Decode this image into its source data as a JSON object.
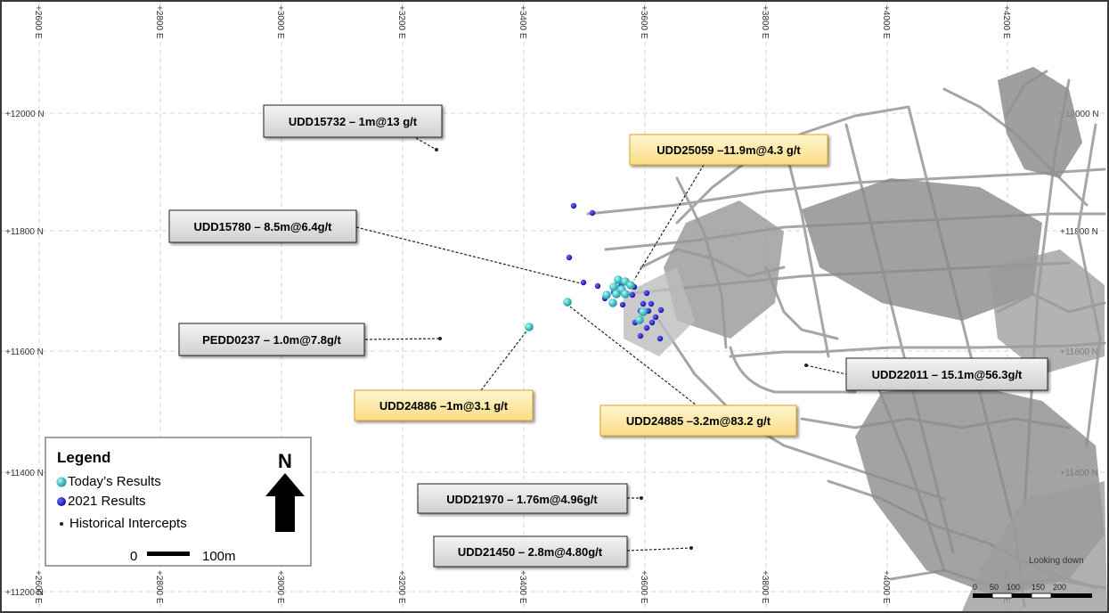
{
  "grid": {
    "easting_labels": [
      "+2600 E",
      "+2800 E",
      "+3000 E",
      "+3200 E",
      "+3400 E",
      "+3600 E",
      "+3800 E",
      "+4000 E",
      "+4200 E"
    ],
    "northing_labels": [
      "+12000 N",
      "+11800 N",
      "+11600 N",
      "+11400 N",
      "+11200 N"
    ]
  },
  "callouts": {
    "udd15732": "UDD15732 – 1m@13 g/t",
    "udd25059": "UDD25059 –11.9m@4.3 g/t",
    "udd15780": "UDD15780 – 8.5m@6.4g/t",
    "pedd0237": "PEDD0237 – 1.0m@7.8g/t",
    "udd22011": "UDD22011 – 15.1m@56.3g/t",
    "udd24886": "UDD24886 –1m@3.1 g/t",
    "udd24885": "UDD24885 –3.2m@83.2 g/t",
    "udd21970": "UDD21970 – 1.76m@4.96g/t",
    "udd21450": "UDD21450 – 2.8m@4.80g/t"
  },
  "legend": {
    "title": "Legend",
    "today": "Today’s Results",
    "results_2021": "2021 Results",
    "historical": "Historical Intercepts",
    "north": "N",
    "scale_start": "0",
    "scale_end": "100m"
  },
  "scale_bar": {
    "labels": [
      "0",
      "50",
      "100",
      "150",
      "200"
    ]
  },
  "view_note": "Looking down",
  "colors": {
    "today": "#4fc9cc",
    "results_2021": "#1a1acc",
    "historical": "#222222",
    "workings": "#a6a6a6",
    "highlight_box": "#fde9a0",
    "grey_box": "#dcdcdc"
  }
}
